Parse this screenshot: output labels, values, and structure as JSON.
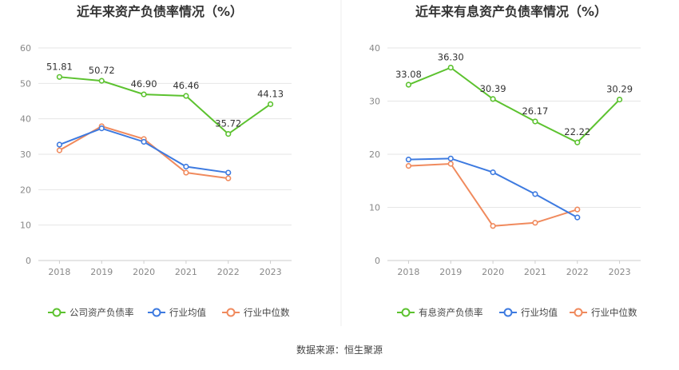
{
  "source_text": "数据来源：恒生聚源",
  "chart_data": [
    {
      "type": "line",
      "title": "近年来资产负债率情况（%）",
      "categories": [
        "2018",
        "2019",
        "2020",
        "2021",
        "2022",
        "2023"
      ],
      "ylim": [
        0,
        60
      ],
      "yticks": [
        0,
        10,
        20,
        30,
        40,
        50,
        60
      ],
      "grid": true,
      "legend": "bottom",
      "series": [
        {
          "name": "公司资产负债率",
          "color": "#5cc22f",
          "labels": true,
          "values": [
            51.81,
            50.72,
            46.9,
            46.46,
            35.72,
            44.13
          ]
        },
        {
          "name": "行业均值",
          "color": "#3d7ae0",
          "labels": false,
          "values": [
            32.7,
            37.3,
            33.5,
            26.5,
            24.8,
            null
          ]
        },
        {
          "name": "行业中位数",
          "color": "#f08a5d",
          "labels": false,
          "values": [
            31.1,
            37.9,
            34.3,
            24.8,
            23.2,
            null
          ]
        }
      ]
    },
    {
      "type": "line",
      "title": "近年来有息资产负债率情况（%）",
      "categories": [
        "2018",
        "2019",
        "2020",
        "2021",
        "2022",
        "2023"
      ],
      "ylim": [
        0,
        40
      ],
      "yticks": [
        0,
        10,
        20,
        30,
        40
      ],
      "grid": true,
      "legend": "bottom",
      "series": [
        {
          "name": "有息资产负债率",
          "color": "#5cc22f",
          "labels": true,
          "values": [
            33.08,
            36.3,
            30.39,
            26.17,
            22.22,
            30.29
          ]
        },
        {
          "name": "行业均值",
          "color": "#3d7ae0",
          "labels": false,
          "values": [
            19.0,
            19.2,
            16.6,
            12.5,
            8.1,
            null
          ]
        },
        {
          "name": "行业中位数",
          "color": "#f08a5d",
          "labels": false,
          "values": [
            17.8,
            18.2,
            6.5,
            7.1,
            9.6,
            null
          ]
        }
      ]
    }
  ]
}
